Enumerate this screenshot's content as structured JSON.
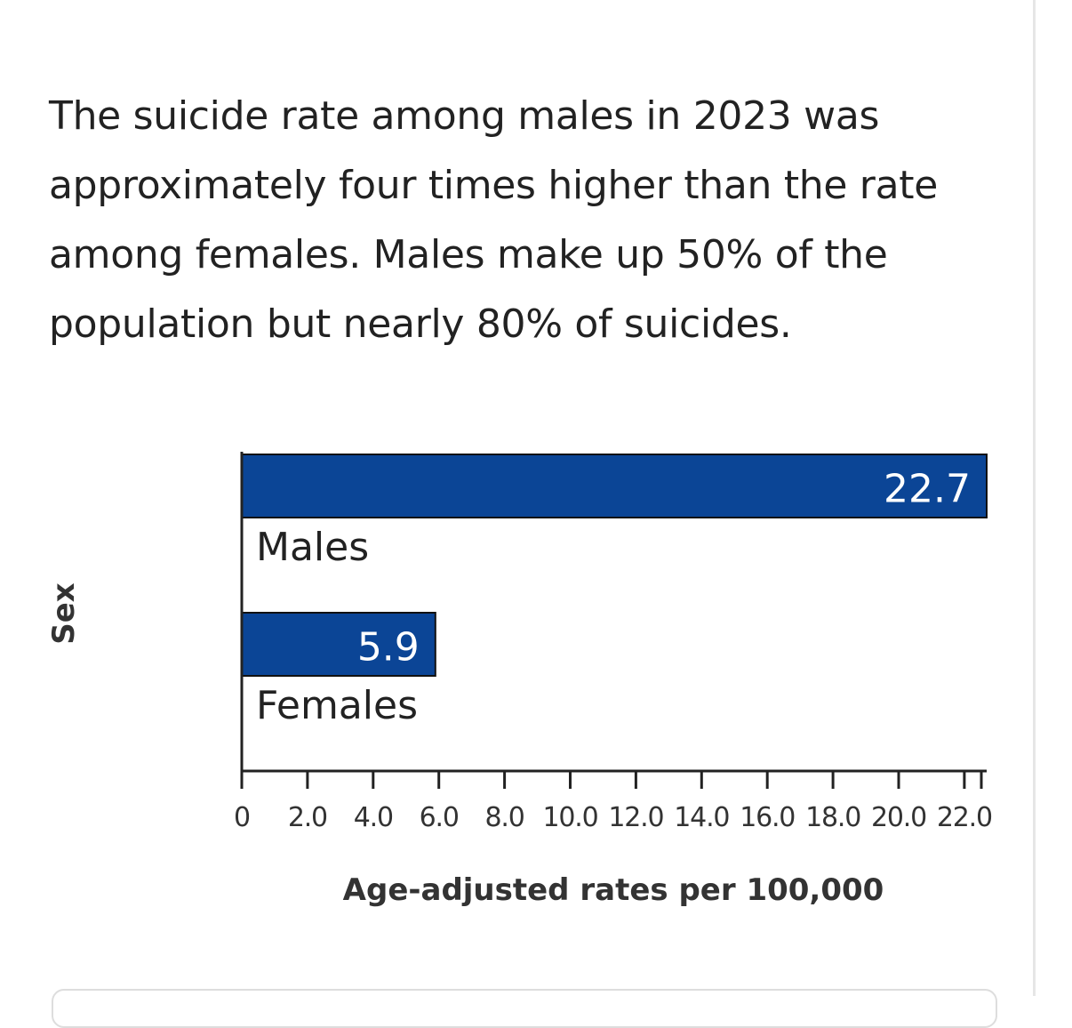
{
  "description": "The suicide rate among males in 2023 was approximately four times higher than the rate among females. Males make up 50% of the population but nearly 80% of suicides.",
  "colors": {
    "bar": "#0b4596",
    "axis": "#222222"
  },
  "chart_data": {
    "type": "bar",
    "orientation": "horizontal",
    "categories": [
      "Males",
      "Females"
    ],
    "values": [
      22.7,
      5.9
    ],
    "data_labels": [
      "22.7",
      "5.9"
    ],
    "title": "",
    "xlabel": "Age-adjusted rates per 100,000",
    "ylabel": "Sex",
    "xlim": [
      0,
      22.7
    ],
    "x_ticks": [
      0,
      2,
      4,
      6,
      8,
      10,
      12,
      14,
      16,
      18,
      20,
      22
    ],
    "x_tick_labels": [
      "0",
      "2.0",
      "4.0",
      "6.0",
      "8.0",
      "10.0",
      "12.0",
      "14.0",
      "16.0",
      "18.0",
      "20.0",
      "22.0"
    ],
    "grid": false,
    "legend": "none"
  }
}
